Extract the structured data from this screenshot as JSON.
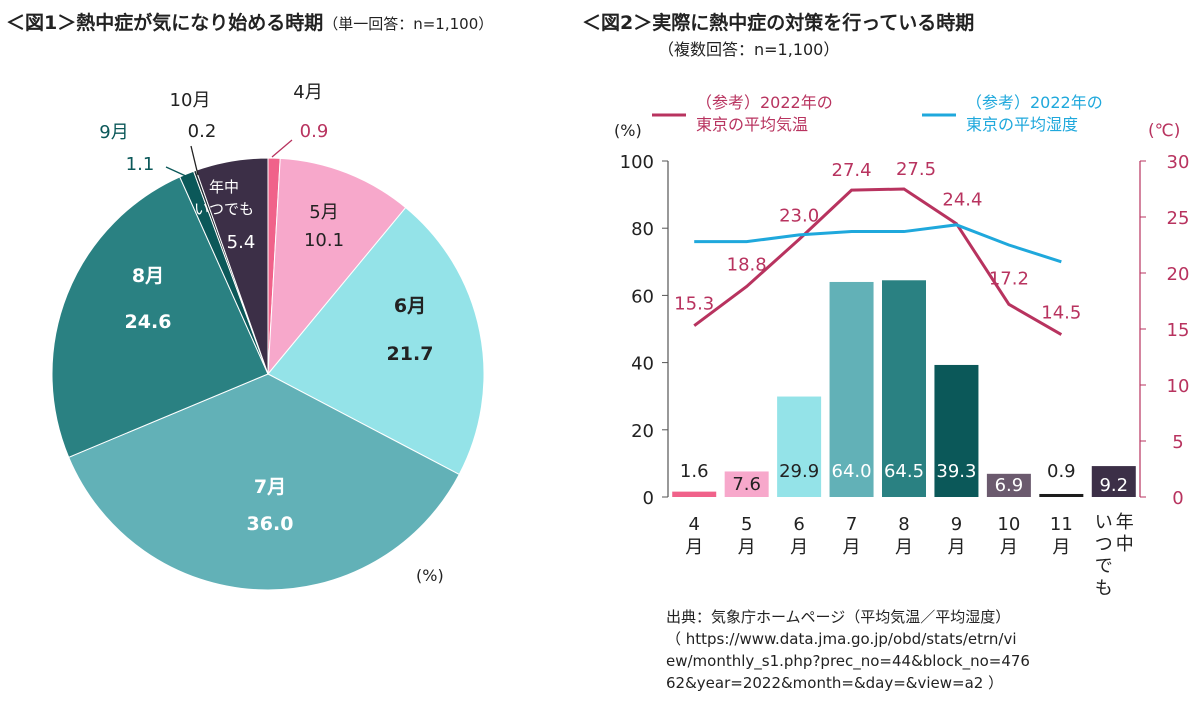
{
  "chart_data": [
    {
      "type": "pie",
      "title": "＜図1＞熱中症が気になり始める時期",
      "subtitle": "（単一回答：n=1,100）",
      "unit_label": "(%)",
      "slices": [
        {
          "label": "4月",
          "value": 0.9,
          "color": "#f0628a"
        },
        {
          "label": "5月",
          "value": 10.1,
          "color": "#f7a8cb"
        },
        {
          "label": "6月",
          "value": 21.7,
          "color": "#94e3e8"
        },
        {
          "label": "7月",
          "value": 36.0,
          "color": "#62b1b7"
        },
        {
          "label": "8月",
          "value": 24.6,
          "color": "#2a8182"
        },
        {
          "label": "9月",
          "value": 1.1,
          "color": "#0b5859"
        },
        {
          "label": "10月",
          "value": 0.2,
          "color": "#1c2a30"
        },
        {
          "label": "年中いつでも",
          "value": 5.4,
          "color": "#3c2f47"
        }
      ]
    },
    {
      "type": "bar",
      "title": "＜図2＞実際に熱中症の対策を行っている時期",
      "subtitle": "（複数回答：n=1,100）",
      "ylabel_left": "(%)",
      "ylabel_right": "(℃)",
      "ylim_left": [
        0,
        100
      ],
      "ylim_right": [
        0,
        30
      ],
      "yticks_left": [
        0,
        20,
        40,
        60,
        80,
        100
      ],
      "yticks_right": [
        0,
        5,
        10,
        15,
        20,
        25,
        30
      ],
      "categories": [
        "4月",
        "5月",
        "6月",
        "7月",
        "8月",
        "9月",
        "10月",
        "11月",
        "年中いつでも"
      ],
      "values": [
        1.6,
        7.6,
        29.9,
        64.0,
        64.5,
        39.3,
        6.9,
        0.9,
        9.2
      ],
      "bar_colors": [
        "#f0628a",
        "#f7a8cb",
        "#94e3e8",
        "#62b1b7",
        "#2a8182",
        "#0b5859",
        "#6b5a6e",
        "#1c1c1c",
        "#3c2f47"
      ],
      "lines": [
        {
          "name": "（参考）2022年の東京の平均気温",
          "axis": "right",
          "color": "#b8335f",
          "values": [
            15.3,
            18.8,
            23.0,
            27.4,
            27.5,
            24.4,
            17.2,
            14.5
          ]
        },
        {
          "name": "（参考）2022年の東京の平均湿度",
          "axis": "left",
          "color": "#1fa8dc",
          "values": [
            76,
            76,
            78,
            79,
            79,
            81,
            75,
            70
          ]
        }
      ],
      "source": [
        "出典：気象庁ホームページ（平均気温／平均湿度）",
        "（ https://www.data.jma.go.jp/obd/stats/etrn/vi",
        "ew/monthly_s1.php?prec_no=44&block_no=476",
        "62&year=2022&month=&day=&view=a2 ）"
      ]
    }
  ]
}
